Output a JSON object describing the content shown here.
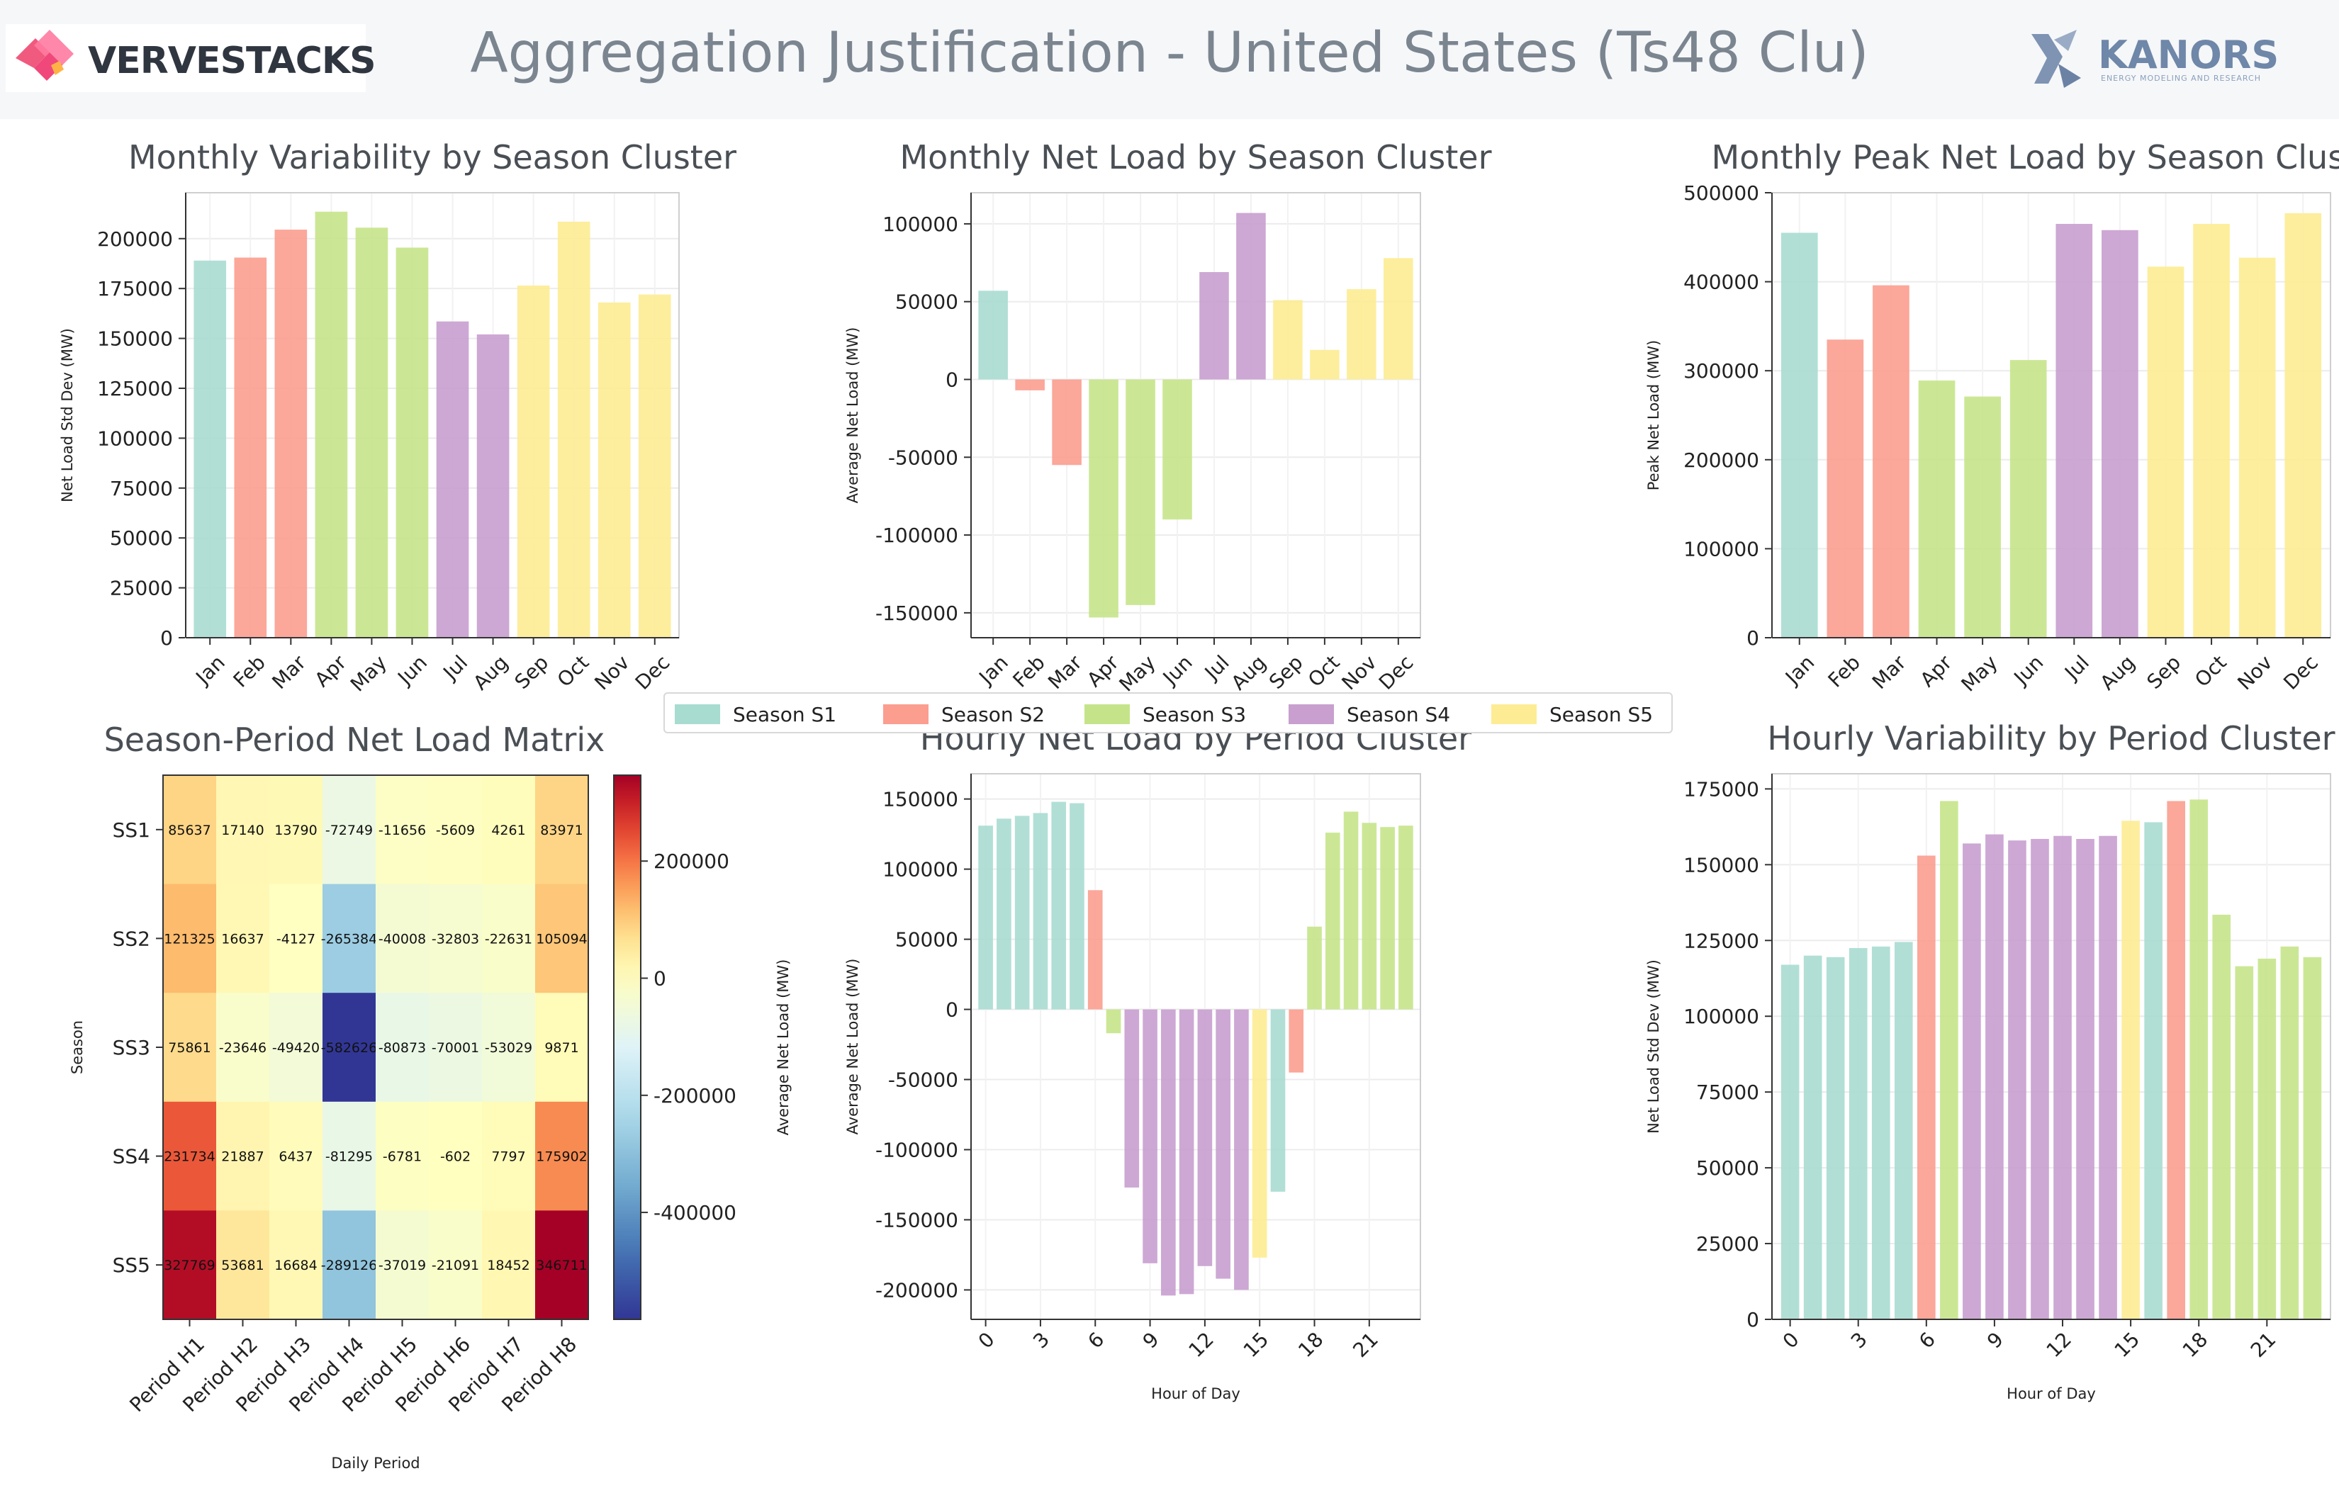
{
  "header": {
    "title": "Aggregation Justification - United States (Ts48 Clu)",
    "logo_left_text": "VERVESTACKS",
    "logo_right_text": "KANORS",
    "logo_right_sub": "ENERGY MODELING AND RESEARCH"
  },
  "colors": {
    "S1": "#a8dcd1",
    "S2": "#fb9d8f",
    "S3": "#c5e48a",
    "S4": "#c89fcf",
    "S5": "#fdec94"
  },
  "legend": [
    {
      "key": "S1",
      "label": "Season S1"
    },
    {
      "key": "S2",
      "label": "Season S2"
    },
    {
      "key": "S3",
      "label": "Season S3"
    },
    {
      "key": "S4",
      "label": "Season S4"
    },
    {
      "key": "S5",
      "label": "Season S5"
    }
  ],
  "chart_data": [
    {
      "id": "monthly-variability",
      "type": "bar",
      "title": "Monthly Variability by Season Cluster",
      "ylabel": "Net Load Std Dev (MW)",
      "xlabel": "",
      "categories": [
        "Jan",
        "Feb",
        "Mar",
        "Apr",
        "May",
        "Jun",
        "Jul",
        "Aug",
        "Sep",
        "Oct",
        "Nov",
        "Dec"
      ],
      "values": [
        189000,
        190500,
        204500,
        213500,
        205500,
        195500,
        158500,
        152000,
        176500,
        208500,
        168000,
        172000
      ],
      "season": [
        "S1",
        "S2",
        "S2",
        "S3",
        "S3",
        "S3",
        "S4",
        "S4",
        "S5",
        "S5",
        "S5",
        "S5"
      ],
      "ylim": [
        0,
        223000
      ],
      "yticks": [
        0,
        25000,
        50000,
        75000,
        100000,
        125000,
        150000,
        175000,
        200000
      ]
    },
    {
      "id": "monthly-net-load",
      "type": "bar",
      "title": "Monthly Net Load by Season Cluster",
      "ylabel": "Average Net Load (MW)",
      "xlabel": "",
      "categories": [
        "Jan",
        "Feb",
        "Mar",
        "Apr",
        "May",
        "Jun",
        "Jul",
        "Aug",
        "Sep",
        "Oct",
        "Nov",
        "Dec"
      ],
      "values": [
        57000,
        -7000,
        -55000,
        -153000,
        -145000,
        -90000,
        69000,
        107000,
        51000,
        19000,
        58000,
        78000
      ],
      "season": [
        "S1",
        "S2",
        "S2",
        "S3",
        "S3",
        "S3",
        "S4",
        "S4",
        "S5",
        "S5",
        "S5",
        "S5"
      ],
      "ylim": [
        -166000,
        120000
      ],
      "yticks": [
        -150000,
        -100000,
        -50000,
        0,
        50000,
        100000
      ]
    },
    {
      "id": "monthly-peak",
      "type": "bar",
      "title": "Monthly Peak Net Load by Season Cluster",
      "ylabel": "Peak Net Load (MW)",
      "xlabel": "",
      "categories": [
        "Jan",
        "Feb",
        "Mar",
        "Apr",
        "May",
        "Jun",
        "Jul",
        "Aug",
        "Sep",
        "Oct",
        "Nov",
        "Dec"
      ],
      "values": [
        455000,
        335000,
        396000,
        289000,
        271000,
        312000,
        465000,
        458000,
        417000,
        465000,
        427000,
        477000
      ],
      "season": [
        "S1",
        "S2",
        "S2",
        "S3",
        "S3",
        "S3",
        "S4",
        "S4",
        "S5",
        "S5",
        "S5",
        "S5"
      ],
      "ylim": [
        0,
        500000
      ],
      "yticks": [
        0,
        100000,
        200000,
        300000,
        400000,
        500000
      ]
    },
    {
      "id": "season-period-matrix",
      "type": "heatmap",
      "title": "Season-Period Net Load Matrix",
      "xlabel": "Daily Period",
      "ylabel": "Season",
      "colorbar_label": "Average Net Load (MW)",
      "rows": [
        "SS1",
        "SS2",
        "SS3",
        "SS4",
        "SS5"
      ],
      "columns": [
        "Period H1",
        "Period H2",
        "Period H3",
        "Period H4",
        "Period H5",
        "Period H6",
        "Period H7",
        "Period H8"
      ],
      "values": [
        [
          85637,
          17140,
          13790,
          -72749,
          -11656,
          -5609,
          4261,
          83971
        ],
        [
          121325,
          16637,
          -4127,
          -265384,
          -40008,
          -32803,
          -22631,
          105094
        ],
        [
          75861,
          -23646,
          -49420,
          -582626,
          -80873,
          -70001,
          -53029,
          9871
        ],
        [
          231734,
          21887,
          6437,
          -81295,
          -6781,
          -602,
          7797,
          175902
        ],
        [
          327769,
          53681,
          16684,
          -289126,
          -37019,
          -21091,
          18452,
          346711
        ]
      ],
      "cell_labels": [
        [
          "85637",
          "17140",
          "13790",
          "-72749",
          "-11656",
          "-5609",
          "4261",
          "83971"
        ],
        [
          "121325",
          "16637",
          "-4127",
          "-265384",
          "-40008",
          "-32803",
          "-22631",
          "105094"
        ],
        [
          "75861",
          "-23646",
          "-49420",
          "-582626",
          "-80873",
          "-70001",
          "-53029",
          "9871"
        ],
        [
          "231734",
          "21887",
          "6437",
          "-81295",
          "-6781",
          "-602",
          "7797",
          "175902"
        ],
        [
          "327769",
          "53681",
          "16684",
          "-289126",
          "-37019",
          "-21091",
          "18452",
          "346711"
        ]
      ],
      "vmin": -582626,
      "vmax": 346711,
      "vcenter": 0,
      "colorbar_ticks": [
        -400000,
        -200000,
        0,
        200000
      ],
      "colorscale": "RdYlBu_r"
    },
    {
      "id": "hourly-net-load",
      "type": "bar",
      "title": "Hourly Net Load by Period Cluster",
      "ylabel": "Average Net Load (MW)",
      "xlabel": "Hour of Day",
      "x": [
        0,
        1,
        2,
        3,
        4,
        5,
        6,
        7,
        8,
        9,
        10,
        11,
        12,
        13,
        14,
        15,
        16,
        17,
        18,
        19,
        20,
        21,
        22,
        23
      ],
      "values": [
        131000,
        136000,
        138000,
        140000,
        148000,
        147000,
        85000,
        -17000,
        -127000,
        -181000,
        -204000,
        -203000,
        -183000,
        -192000,
        -200000,
        -177000,
        -130000,
        -45000,
        59000,
        126000,
        141000,
        133000,
        130000,
        131000
      ],
      "season": [
        "S1",
        "S1",
        "S1",
        "S1",
        "S1",
        "S1",
        "S2",
        "S3",
        "S4",
        "S4",
        "S4",
        "S4",
        "S4",
        "S4",
        "S4",
        "S5",
        "S1",
        "S2",
        "S3",
        "S3",
        "S3",
        "S3",
        "S3",
        "S3"
      ],
      "ylim": [
        -221000,
        168000
      ],
      "xticks": [
        0,
        3,
        6,
        9,
        12,
        15,
        18,
        21
      ],
      "yticks": [
        -200000,
        -150000,
        -100000,
        -50000,
        0,
        50000,
        100000,
        150000
      ]
    },
    {
      "id": "hourly-variability",
      "type": "bar",
      "title": "Hourly Variability by Period Cluster",
      "ylabel": "Net Load Std Dev (MW)",
      "xlabel": "Hour of Day",
      "x": [
        0,
        1,
        2,
        3,
        4,
        5,
        6,
        7,
        8,
        9,
        10,
        11,
        12,
        13,
        14,
        15,
        16,
        17,
        18,
        19,
        20,
        21,
        22,
        23
      ],
      "values": [
        117000,
        120000,
        119500,
        122500,
        123000,
        124500,
        153000,
        171000,
        157000,
        160000,
        158000,
        158500,
        159500,
        158500,
        159500,
        164500,
        164000,
        171000,
        171500,
        133500,
        116500,
        119000,
        123000,
        119500
      ],
      "season": [
        "S1",
        "S1",
        "S1",
        "S1",
        "S1",
        "S1",
        "S2",
        "S3",
        "S4",
        "S4",
        "S4",
        "S4",
        "S4",
        "S4",
        "S4",
        "S5",
        "S1",
        "S2",
        "S3",
        "S3",
        "S3",
        "S3",
        "S3",
        "S3"
      ],
      "ylim": [
        0,
        180000
      ],
      "xticks": [
        0,
        3,
        6,
        9,
        12,
        15,
        18,
        21
      ],
      "yticks": [
        0,
        25000,
        50000,
        75000,
        100000,
        125000,
        150000,
        175000
      ]
    }
  ]
}
